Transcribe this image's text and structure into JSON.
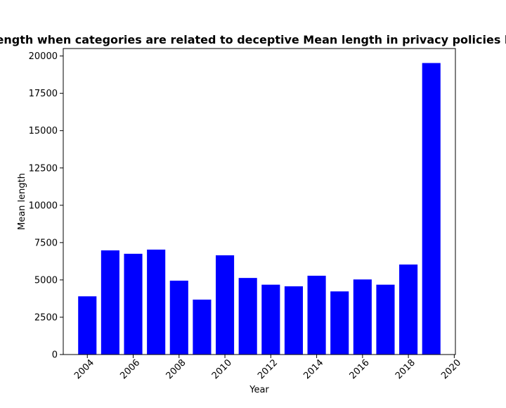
{
  "chart_data": {
    "type": "bar",
    "title": "Mean length when categories are related to deceptive Mean length in privacy policies by Year",
    "xlabel": "Year",
    "ylabel": "Mean length",
    "x": [
      2004,
      2005,
      2006,
      2007,
      2008,
      2009,
      2010,
      2011,
      2012,
      2013,
      2014,
      2015,
      2016,
      2017,
      2018,
      2019
    ],
    "values": [
      3900,
      6980,
      6750,
      7030,
      4950,
      3680,
      6650,
      5130,
      4680,
      4570,
      5280,
      4230,
      5030,
      4680,
      6030,
      19530
    ],
    "xlim": [
      2002.95,
      2020.05
    ],
    "ylim": [
      0,
      20500
    ],
    "xticks": [
      "2004",
      "2006",
      "2008",
      "2010",
      "2012",
      "2014",
      "2016",
      "2018",
      "2020"
    ],
    "yticks": [
      "0",
      "2500",
      "5000",
      "7500",
      "10000",
      "12500",
      "15000",
      "17500",
      "20000"
    ],
    "bar_color": "#0000ff",
    "grid": false,
    "legend": "none"
  }
}
